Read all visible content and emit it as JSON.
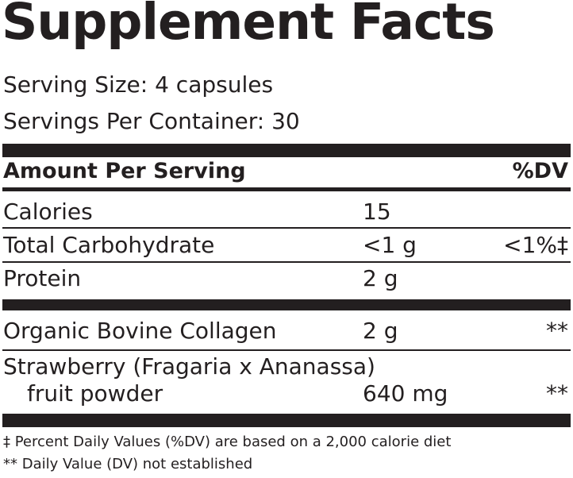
{
  "header": {
    "title": "Supplement Facts",
    "serving_size": "Serving Size: 4 capsules",
    "servings_per_container": "Servings Per Container: 30"
  },
  "table": {
    "columns": [
      "Amount Per Serving",
      "%DV"
    ],
    "rows": [
      {
        "name": "Calories",
        "amount": "15"
      },
      {
        "name": "Total Carbohydrate",
        "amount": "<1 g",
        "dv": "<1%‡"
      },
      {
        "name": "Protein",
        "amount": "2 g"
      },
      {
        "name": "Organic Bovine Collagen",
        "amount": "2 g",
        "dv": "**"
      },
      {
        "name_lines": [
          "Strawberry (Fragaria x Ananassa)",
          "fruit powder"
        ],
        "amount": "640 mg",
        "dv": "**"
      }
    ]
  },
  "footnotes": [
    "‡ Percent Daily Values (%DV) are based on a 2,000 calorie diet",
    "** Daily Value (DV) not established"
  ]
}
